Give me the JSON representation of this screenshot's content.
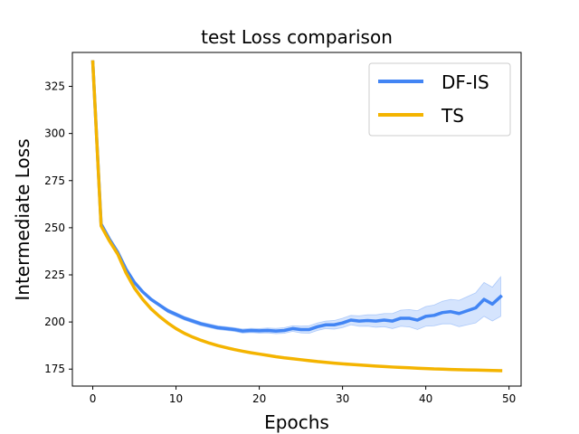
{
  "chart_data": {
    "type": "line",
    "title": "test Loss comparison",
    "xlabel": "Epochs",
    "ylabel": "Intermediate Loss",
    "xlim": [
      -2.45,
      51.45
    ],
    "ylim": [
      166,
      343
    ],
    "xticks": [
      0,
      10,
      20,
      30,
      40,
      50
    ],
    "yticks": [
      175,
      200,
      225,
      250,
      275,
      300,
      325
    ],
    "grid": false,
    "legend_position": "top-right",
    "x": [
      0,
      1,
      2,
      3,
      4,
      5,
      6,
      7,
      8,
      9,
      10,
      11,
      12,
      13,
      14,
      15,
      16,
      17,
      18,
      19,
      20,
      21,
      22,
      23,
      24,
      25,
      26,
      27,
      28,
      29,
      30,
      31,
      32,
      33,
      34,
      35,
      36,
      37,
      38,
      39,
      40,
      41,
      42,
      43,
      44,
      45,
      46,
      47,
      48,
      49
    ],
    "series": [
      {
        "name": "DF-IS",
        "color": "#4285f4",
        "values": [
          338,
          252,
          244,
          237,
          228,
          221,
          216,
          212,
          209,
          206,
          204,
          202,
          200.5,
          199,
          198,
          197,
          196.5,
          196,
          195.2,
          195.5,
          195.3,
          195.5,
          195.2,
          195.5,
          196.5,
          196,
          196,
          197.5,
          198.5,
          198.5,
          199.5,
          201,
          200.5,
          200.8,
          200.5,
          201,
          200.5,
          202,
          202,
          201,
          203,
          203.5,
          205,
          205.5,
          204.5,
          206,
          207.5,
          212,
          209.5,
          213.5
        ],
        "band_upper": [
          338.5,
          252.5,
          244.5,
          237.5,
          228.5,
          221.5,
          216.5,
          212.8,
          209.8,
          207,
          205,
          203,
          201.5,
          200,
          199,
          198,
          197.5,
          197,
          196.3,
          196.6,
          196.5,
          196.8,
          196.6,
          197,
          198,
          197.8,
          198,
          199.5,
          200.5,
          200.8,
          202,
          203.5,
          203.3,
          203.8,
          203.8,
          204.5,
          204.5,
          206.3,
          206.6,
          206,
          208.2,
          209,
          211,
          212,
          211.5,
          213.5,
          215.5,
          221,
          218.5,
          224
        ]
      },
      {
        "name": "TS",
        "color": "#f4b400",
        "values": [
          338,
          251,
          243,
          236,
          226,
          218,
          212,
          207,
          203,
          199.5,
          196.5,
          194,
          192,
          190.3,
          188.8,
          187.5,
          186.4,
          185.4,
          184.5,
          183.7,
          183,
          182.3,
          181.6,
          181,
          180.5,
          180,
          179.5,
          179,
          178.6,
          178.2,
          177.8,
          177.5,
          177.2,
          176.9,
          176.6,
          176.4,
          176.1,
          175.9,
          175.7,
          175.5,
          175.3,
          175.1,
          175,
          174.8,
          174.7,
          174.6,
          174.5,
          174.4,
          174.3,
          174.2
        ]
      }
    ]
  }
}
